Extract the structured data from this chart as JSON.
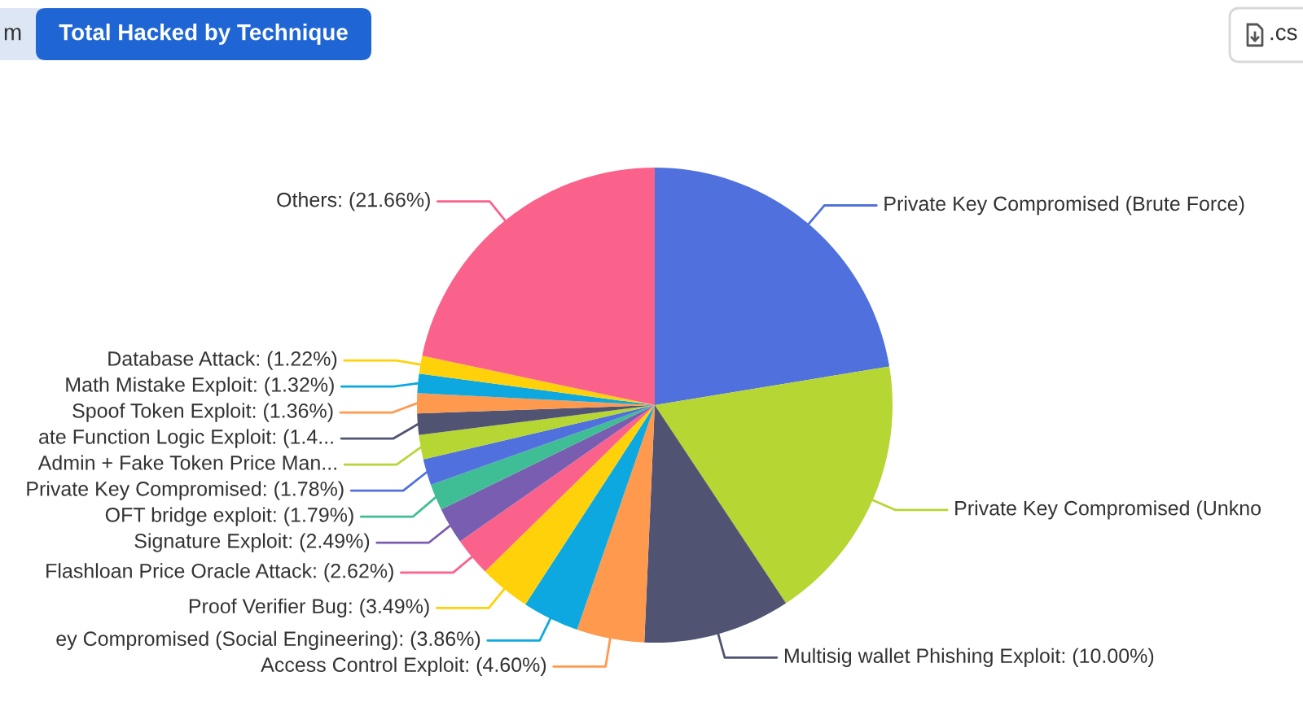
{
  "chart_data": {
    "type": "pie",
    "title": "Total Hacked by Technique",
    "categories": [
      "Private Key Compromised (Brute Force)",
      "Private Key Compromised (Unkno",
      "Multisig wallet Phishing Exploit",
      "Access Control Exploit",
      "ey Compromised (Social Engineering)",
      "Proof Verifier Bug",
      "Flashloan Price Oracle Attack",
      "Signature Exploit",
      "OFT bridge exploit",
      "Private Key Compromised",
      "Admin + Fake Token Price Man...",
      "ate Function Logic Exploit",
      "Spoof Token Exploit",
      "Math Mistake Exploit",
      "Database Attack",
      "Others"
    ],
    "values": [
      22.4,
      18.3,
      10.0,
      4.6,
      3.86,
      3.49,
      2.62,
      2.49,
      1.79,
      1.78,
      1.66,
      1.45,
      1.36,
      1.32,
      1.22,
      21.66
    ],
    "value_labels": [
      null,
      null,
      "(10.00%)",
      "(4.60%)",
      "(3.86%)",
      "(3.49%)",
      "(2.62%)",
      "(2.49%)",
      "(1.79%)",
      "(1.78%)",
      null,
      "(1.4...",
      "(1.36%)",
      "(1.32%)",
      "(1.22%)",
      "(21.66%)"
    ],
    "colors": [
      "#5070dd",
      "#b6d634",
      "#505372",
      "#ff994d",
      "#0ca8df",
      "#ffd10a",
      "#fb628b",
      "#785db0",
      "#3fbe95",
      "#5070dd",
      "#b6d634",
      "#505372",
      "#ff994d",
      "#0ca8df",
      "#ffd10a",
      "#fb628b"
    ],
    "annotations": [
      "m",
      ".cs"
    ]
  }
}
